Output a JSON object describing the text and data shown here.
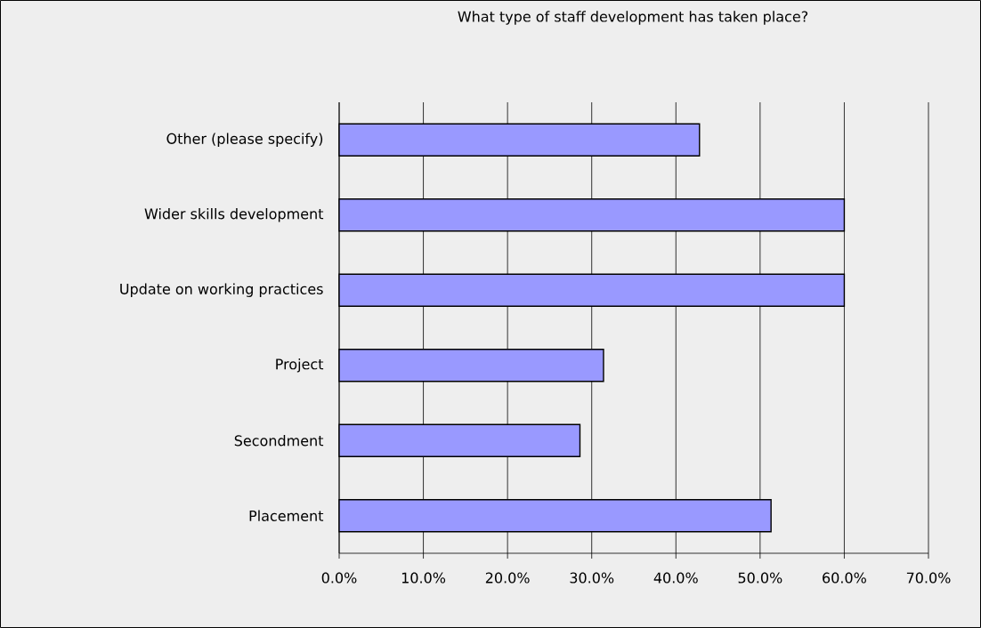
{
  "chart_data": {
    "type": "bar",
    "orientation": "horizontal",
    "title": "What type of staff development has taken place?",
    "categories": [
      "Other (please specify)",
      "Wider skills development",
      "Update on working practices",
      "Project",
      "Secondment",
      "Placement"
    ],
    "values": [
      42.8,
      60.0,
      60.0,
      31.4,
      28.6,
      51.3
    ],
    "color": "#9999ff",
    "xlim": [
      0,
      70
    ],
    "xticks": [
      {
        "value": 0,
        "label": "0.0%"
      },
      {
        "value": 10,
        "label": "10.0%"
      },
      {
        "value": 20,
        "label": "20.0%"
      },
      {
        "value": 30,
        "label": "30.0%"
      },
      {
        "value": 40,
        "label": "40.0%"
      },
      {
        "value": 50,
        "label": "50.0%"
      },
      {
        "value": 60,
        "label": "60.0%"
      },
      {
        "value": 70,
        "label": "70.0%"
      }
    ],
    "grid": "x"
  }
}
